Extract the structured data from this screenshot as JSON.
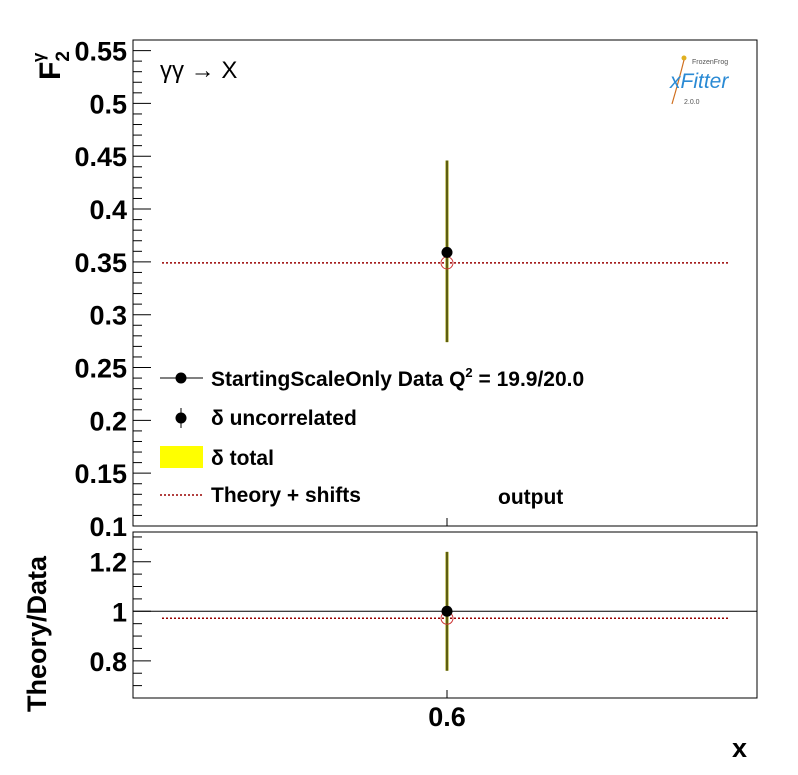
{
  "chart_data": [
    {
      "type": "scatter",
      "panel": "main",
      "ylabel": "F",
      "ylabel_sub": "2",
      "ylabel_sup": "γ",
      "process": "γγ → X",
      "ylim": [
        0.1,
        0.56
      ],
      "yticks": [
        0.1,
        0.15,
        0.2,
        0.25,
        0.3,
        0.35,
        0.4,
        0.45,
        0.5,
        0.55
      ],
      "ytick_labels": [
        "0.1",
        "0.15",
        "0.2",
        "0.25",
        "0.3",
        "0.35",
        "0.4",
        "0.45",
        "0.5",
        "0.55"
      ],
      "series": [
        {
          "name": "StartingScaleOnly  Data Q² = 19.9/20.0",
          "role": "data",
          "x": [
            0.6
          ],
          "y": [
            0.359
          ],
          "err_low": [
            0.274
          ],
          "err_high": [
            0.446
          ],
          "color": "#000000"
        },
        {
          "name": "δ uncorrelated",
          "role": "uncorrelated-error",
          "color": "#000000"
        },
        {
          "name": "δ total",
          "role": "total-error",
          "color": "#ffff00"
        },
        {
          "name": "Theory + shifts",
          "role": "theory",
          "y": [
            0.349
          ],
          "color": "#990000"
        }
      ],
      "annotation": "output",
      "legend_position": "lower-left",
      "legend": {
        "data_label_prefix": "StartingScaleOnly  Data Q",
        "data_label_sup": "2",
        "data_label_suffix": " = 19.9/20.0",
        "uncorrelated_label": "δ uncorrelated",
        "total_label": "δ total",
        "theory_label": "Theory + shifts"
      },
      "logo": {
        "small": "FrozenFrog",
        "main": "xFitter",
        "version": "2.0.0"
      }
    },
    {
      "type": "scatter",
      "panel": "ratio",
      "ylabel": "Theory/Data",
      "xlabel": "x",
      "ylim": [
        0.65,
        1.32
      ],
      "yticks": [
        0.8,
        1.0,
        1.2
      ],
      "ytick_labels": [
        "0.8",
        "1",
        "1.2"
      ],
      "xticks": [
        0.6
      ],
      "xtick_labels": [
        "0.6"
      ],
      "reference_line": 1.0,
      "series": [
        {
          "role": "data",
          "x": [
            0.6
          ],
          "y": [
            1.0
          ],
          "err_low": [
            0.76
          ],
          "err_high": [
            1.24
          ],
          "color": "#000000"
        },
        {
          "role": "theory",
          "y": [
            0.972
          ],
          "color": "#990000"
        }
      ]
    }
  ]
}
